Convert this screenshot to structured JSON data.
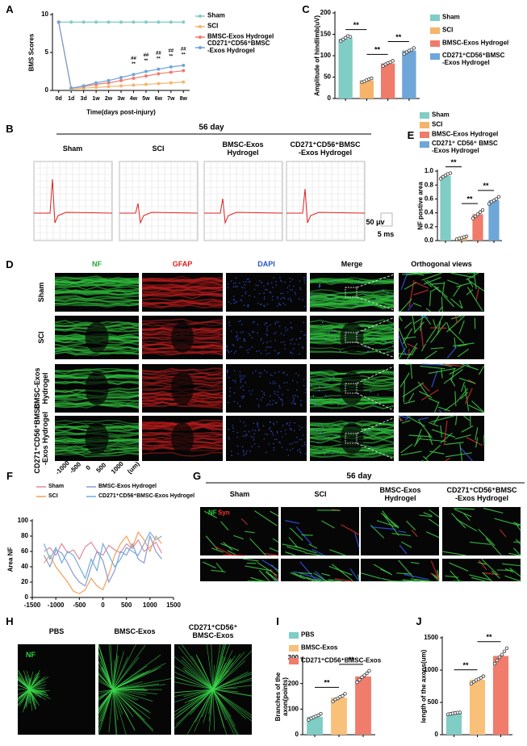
{
  "panel_labels": [
    "A",
    "B",
    "C",
    "D",
    "E",
    "F",
    "G",
    "H",
    "I",
    "J"
  ],
  "panel_b": {
    "title": "56 day",
    "columns": [
      "Sham",
      "SCI",
      "BMSC-Exos\nHydrogel",
      "CD271⁺CD56⁺BMSC\n-Exos Hydrogel"
    ],
    "scale_voltage": "50 μv",
    "scale_time": "5 ms"
  },
  "panel_d": {
    "columns": [
      "NF",
      "GFAP",
      "DAPI",
      "Merge",
      "Orthogonal views"
    ],
    "rows": [
      "Sham",
      "SCI",
      "BMSC-Exos\nHydrogel",
      "CD271⁺CD56⁺BMSC\n-Exos Hydrogel"
    ],
    "scale_labels": [
      "-1000",
      "-500",
      "0",
      "500",
      "1000",
      "(um)"
    ]
  },
  "panel_g": {
    "title": "56 day",
    "columns": [
      "Sham",
      "SCI",
      "BMSC-Exos\nHydrogel",
      "CD271⁺CD56⁺BMSC\n-Exos Hydrogel"
    ],
    "stain_nf": "NF",
    "stain_syn": "Syn"
  },
  "panel_h": {
    "columns": [
      "PBS",
      "BMSC-Exos",
      "CD271⁺CD56⁺\nBMSC-Exos"
    ],
    "stain": "NF"
  },
  "chart_data": [
    {
      "type": "line",
      "ylabel": "BMS Scores",
      "xlabel": "Time(days post-injury)",
      "categories": [
        "0d",
        "1d",
        "3d",
        "1w",
        "2w",
        "3w",
        "4w",
        "5w",
        "6w",
        "7w",
        "8w"
      ],
      "ylim": [
        0,
        10
      ],
      "yticks": [
        0,
        5,
        10
      ],
      "markers": true,
      "series": [
        {
          "name": "Sham",
          "color": "#7fcdc5",
          "values": [
            9,
            9,
            9,
            9,
            9,
            9,
            9,
            9,
            9,
            9,
            9
          ]
        },
        {
          "name": "SCI",
          "color": "#f5b46a",
          "values": [
            9,
            0.2,
            0.3,
            0.4,
            0.5,
            0.6,
            0.7,
            0.8,
            0.9,
            1.0,
            1.1
          ]
        },
        {
          "name": "BMSC-Exos Hydrogel",
          "color": "#ef7b6b",
          "values": [
            9,
            0.3,
            0.5,
            0.8,
            1.0,
            1.3,
            1.6,
            1.9,
            2.2,
            2.4,
            2.6
          ]
        },
        {
          "name": "CD271⁺CD56⁺BMSC\n-Exos Hydrogel",
          "color": "#6ea6d8",
          "values": [
            9,
            0.3,
            0.6,
            1.0,
            1.3,
            1.7,
            2.1,
            2.5,
            2.8,
            3.1,
            3.3
          ]
        }
      ],
      "annotations_hash": [
        null,
        null,
        null,
        null,
        null,
        null,
        "##",
        "##",
        "##",
        "##",
        "##"
      ],
      "annotations_star": [
        null,
        null,
        null,
        null,
        null,
        null,
        "**",
        "**",
        "**",
        "**",
        "**"
      ]
    },
    {
      "type": "bar",
      "ylabel": "Amplitude of hindlimb(uV)",
      "categories": [
        "Sham",
        "SCI",
        "BMSC-Exos Hydrogel",
        "CD271⁺CD56⁺BMSC\n-Exos Hydrogel"
      ],
      "colors": [
        "#7fcdc5",
        "#f5b46a",
        "#ef7b6b",
        "#6ea6d8"
      ],
      "values": [
        140,
        42,
        82,
        112
      ],
      "points": [
        [
          134,
          138,
          142,
          146,
          144
        ],
        [
          38,
          40,
          43,
          45,
          47
        ],
        [
          76,
          80,
          83,
          85,
          88
        ],
        [
          104,
          108,
          112,
          114,
          118
        ]
      ],
      "ylim": [
        0,
        200
      ],
      "yticks": [
        0,
        50,
        100,
        150,
        200
      ],
      "significance": [
        {
          "label": "**",
          "between": [
            0,
            1
          ]
        },
        {
          "label": "**",
          "between": [
            1,
            2
          ]
        },
        {
          "label": "**",
          "between": [
            2,
            3
          ]
        }
      ]
    },
    {
      "type": "bar",
      "ylabel": "NF postive area",
      "categories": [
        "Sham",
        "SCI",
        "BMSC-Exos Hydrogel",
        "CD271⁺ CD56⁺ BMSC\n-Exos Hydrogel"
      ],
      "colors": [
        "#7fcdc5",
        "#f5b46a",
        "#ef7b6b",
        "#6ea6d8"
      ],
      "values": [
        0.93,
        0.04,
        0.38,
        0.58
      ],
      "points": [
        [
          0.89,
          0.92,
          0.94,
          0.96,
          0.97
        ],
        [
          0.02,
          0.03,
          0.04,
          0.05,
          0.06
        ],
        [
          0.32,
          0.35,
          0.38,
          0.41,
          0.44
        ],
        [
          0.53,
          0.56,
          0.58,
          0.6,
          0.63
        ]
      ],
      "ylim": [
        0,
        1.0
      ],
      "yticks": [
        {
          "value": 0,
          "label": "0.0"
        },
        {
          "value": 0.2,
          "label": "0.2"
        },
        {
          "value": 0.4,
          "label": "0.4"
        },
        {
          "value": 0.6,
          "label": "0.6"
        },
        {
          "value": 0.8,
          "label": "0.8"
        },
        {
          "value": 1.0,
          "label": "1.0"
        }
      ],
      "significance": [
        {
          "label": "**",
          "between": [
            0,
            1
          ]
        },
        {
          "label": "**",
          "between": [
            1,
            2
          ]
        },
        {
          "label": "**",
          "between": [
            2,
            3
          ]
        }
      ]
    },
    {
      "type": "line",
      "ylabel": "Area NF",
      "x": [
        -1250,
        -1125,
        -1000,
        -875,
        -750,
        -625,
        -500,
        -375,
        -250,
        -125,
        0,
        125,
        250,
        375,
        500,
        625,
        750,
        875,
        1000,
        1125,
        1250
      ],
      "xlim": [
        -1500,
        1500
      ],
      "xticks": [
        -1500,
        -1000,
        -500,
        0,
        500,
        1000,
        1500
      ],
      "ylim": [
        0,
        100
      ],
      "yticks": [
        0,
        20,
        40,
        60,
        80,
        100
      ],
      "markers": false,
      "series": [
        {
          "name": "Sham",
          "color": "#e48a9a",
          "values": [
            60,
            65,
            55,
            70,
            58,
            62,
            50,
            66,
            72,
            60,
            55,
            68,
            62,
            58,
            70,
            64,
            75,
            60,
            66,
            72,
            58
          ]
        },
        {
          "name": "SCI",
          "color": "#f5a05a",
          "values": [
            45,
            55,
            40,
            30,
            20,
            8,
            5,
            10,
            25,
            15,
            10,
            30,
            55,
            70,
            80,
            65,
            85,
            75,
            60,
            80,
            70
          ]
        },
        {
          "name": "BMSC-Exos Hydrogel",
          "color": "#8a9ad0",
          "values": [
            55,
            40,
            62,
            58,
            45,
            30,
            20,
            15,
            40,
            60,
            48,
            20,
            35,
            60,
            55,
            70,
            50,
            45,
            80,
            60,
            50
          ]
        },
        {
          "name": "CD271⁺CD56⁺BMSC-Exos Hydrogel",
          "color": "#6eb0d8",
          "values": [
            70,
            50,
            65,
            45,
            60,
            55,
            40,
            25,
            50,
            35,
            70,
            55,
            40,
            50,
            65,
            60,
            55,
            70,
            85,
            75,
            80
          ]
        }
      ]
    },
    {
      "type": "bar",
      "ylabel": "Branches of the\naxon(points)",
      "categories": [
        "PBS",
        "BMSC-Exos",
        "CD271⁺CD56⁺BMSC-Exos"
      ],
      "colors": [
        "#7fcdc5",
        "#f9c07a",
        "#f07c6c"
      ],
      "values": [
        70,
        145,
        228
      ],
      "points": [
        [
          58,
          64,
          68,
          72,
          76,
          82
        ],
        [
          130,
          138,
          142,
          148,
          152,
          160
        ],
        [
          205,
          215,
          225,
          232,
          240,
          250
        ]
      ],
      "ylim": [
        0,
        300
      ],
      "yticks": [
        0,
        100,
        200,
        300
      ],
      "significance": [
        {
          "label": "**",
          "between": [
            0,
            1
          ]
        },
        {
          "label": "**",
          "between": [
            1,
            2
          ]
        }
      ]
    },
    {
      "type": "bar",
      "ylabel": "length of the axons(um)",
      "colors": [
        "#7fcdc5",
        "#f9c07a",
        "#f07c6c"
      ],
      "values": [
        330,
        850,
        1220
      ],
      "points": [
        [
          315,
          322,
          330,
          336,
          342,
          345
        ],
        [
          790,
          820,
          845,
          860,
          880,
          905
        ],
        [
          1100,
          1150,
          1200,
          1240,
          1290,
          1340
        ]
      ],
      "ylim": [
        0,
        1500
      ],
      "yticks": [
        0,
        500,
        1000,
        1500
      ],
      "significance": [
        {
          "label": "**",
          "between": [
            0,
            1
          ]
        },
        {
          "label": "**",
          "between": [
            1,
            2
          ]
        }
      ]
    }
  ]
}
